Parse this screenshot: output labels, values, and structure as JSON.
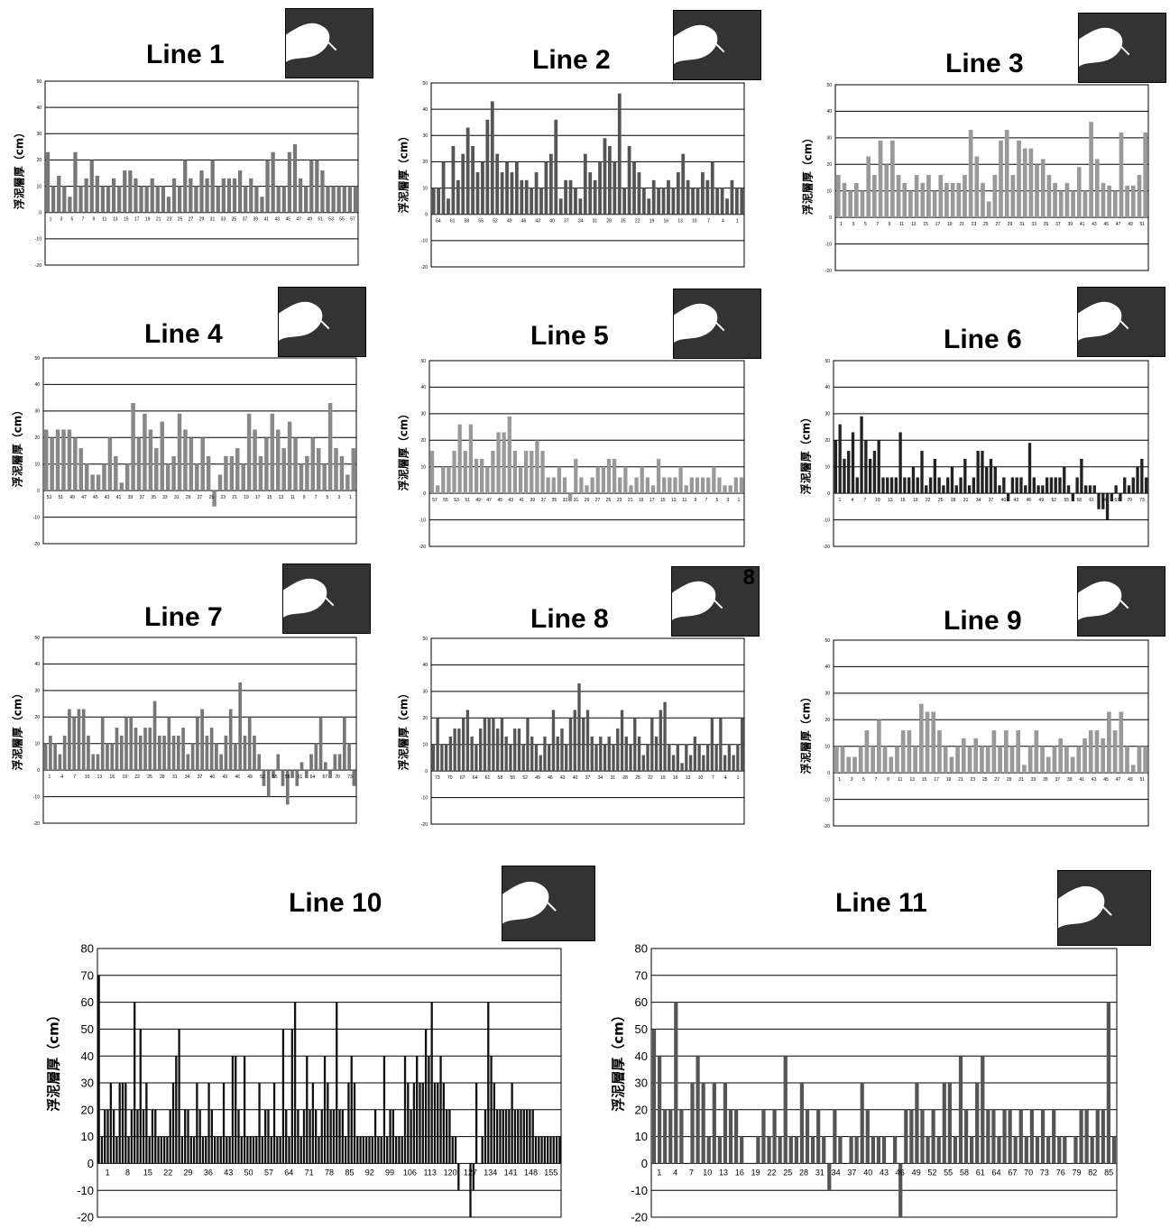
{
  "inset_labels": {
    "line8": "8"
  },
  "chart_data": [
    {
      "id": "line1",
      "type": "bar",
      "title": "Line 1",
      "ylabel": "浮泥層厚（cm）",
      "ylim": [
        -20,
        50
      ],
      "yticks": [
        -20,
        -10,
        0,
        10,
        20,
        30,
        40,
        50
      ],
      "grid": true,
      "legend": "none",
      "bar_color": "#777777",
      "x_tick_labels": [
        "1",
        "3",
        "5",
        "7",
        "9",
        "11",
        "13",
        "15",
        "17",
        "19",
        "21",
        "23",
        "25",
        "27",
        "29",
        "31",
        "33",
        "35",
        "37",
        "39",
        "41",
        "43",
        "45",
        "47",
        "49",
        "51",
        "53",
        "55",
        "57"
      ],
      "values": [
        23,
        10,
        14,
        10,
        6,
        23,
        10,
        13,
        20,
        14,
        10,
        10,
        13,
        10,
        16,
        16,
        13,
        10,
        10,
        13,
        10,
        10,
        6,
        13,
        10,
        20,
        13,
        10,
        16,
        13,
        20,
        10,
        13,
        13,
        13,
        16,
        10,
        13,
        10,
        6,
        20,
        23,
        10,
        10,
        23,
        26,
        13,
        10,
        20,
        20,
        16,
        10,
        10,
        10,
        10,
        10,
        10
      ]
    },
    {
      "id": "line2",
      "type": "bar",
      "title": "Line 2",
      "ylabel": "浮泥層厚（cm）",
      "ylim": [
        -20,
        50
      ],
      "yticks": [
        -20,
        -10,
        0,
        10,
        20,
        30,
        40,
        50
      ],
      "grid": true,
      "legend": "none",
      "bar_color": "#555555",
      "x_tick_labels": [
        "64",
        "61",
        "58",
        "55",
        "52",
        "49",
        "46",
        "43",
        "40",
        "37",
        "34",
        "31",
        "28",
        "25",
        "22",
        "19",
        "16",
        "13",
        "10",
        "7",
        "4",
        "1"
      ],
      "values": [
        10,
        10,
        20,
        6,
        26,
        13,
        23,
        33,
        26,
        16,
        20,
        36,
        43,
        23,
        16,
        20,
        16,
        20,
        13,
        13,
        10,
        16,
        10,
        20,
        23,
        36,
        6,
        13,
        13,
        10,
        6,
        23,
        16,
        13,
        20,
        29,
        26,
        20,
        46,
        10,
        26,
        20,
        16,
        10,
        6,
        13,
        10,
        10,
        13,
        10,
        16,
        23,
        13,
        10,
        10,
        16,
        13,
        20,
        10,
        10,
        6,
        13,
        10,
        10
      ]
    },
    {
      "id": "line3",
      "type": "bar",
      "title": "Line 3",
      "ylabel": "浮泥層厚（cm）",
      "ylim": [
        -20,
        50
      ],
      "yticks": [
        -20,
        -10,
        0,
        10,
        20,
        30,
        40,
        50
      ],
      "grid": true,
      "legend": "none",
      "bar_color": "#999999",
      "x_tick_labels": [
        "1",
        "3",
        "5",
        "7",
        "9",
        "11",
        "13",
        "15",
        "17",
        "19",
        "21",
        "23",
        "25",
        "27",
        "29",
        "31",
        "33",
        "35",
        "37",
        "39",
        "41",
        "43",
        "45",
        "47",
        "49",
        "51"
      ],
      "values": [
        16,
        13,
        10,
        13,
        10,
        23,
        16,
        29,
        20,
        29,
        16,
        13,
        10,
        16,
        13,
        16,
        10,
        16,
        13,
        13,
        13,
        16,
        33,
        23,
        13,
        6,
        16,
        29,
        33,
        16,
        29,
        26,
        26,
        20,
        22,
        16,
        13,
        10,
        13,
        10,
        19,
        10,
        36,
        22,
        13,
        12,
        10,
        32,
        12,
        12,
        16,
        32
      ]
    },
    {
      "id": "line4",
      "type": "bar",
      "title": "Line 4",
      "ylabel": "浮泥層厚（cm）",
      "ylim": [
        -20,
        50
      ],
      "yticks": [
        -20,
        -10,
        0,
        10,
        20,
        30,
        40,
        50
      ],
      "grid": true,
      "legend": "none",
      "bar_color": "#888888",
      "x_tick_labels": [
        "53",
        "51",
        "49",
        "47",
        "45",
        "43",
        "41",
        "39",
        "37",
        "35",
        "33",
        "31",
        "29",
        "27",
        "25",
        "23",
        "21",
        "19",
        "17",
        "15",
        "13",
        "11",
        "9",
        "7",
        "5",
        "3",
        "1"
      ],
      "values": [
        23,
        20,
        23,
        23,
        23,
        20,
        16,
        10,
        6,
        6,
        10,
        20,
        13,
        3,
        10,
        33,
        20,
        29,
        23,
        16,
        26,
        10,
        13,
        29,
        23,
        20,
        10,
        20,
        13,
        -6,
        6,
        13,
        13,
        16,
        10,
        29,
        23,
        13,
        20,
        29,
        23,
        16,
        26,
        20,
        10,
        13,
        20,
        16,
        10,
        33,
        16,
        13,
        6,
        16
      ]
    },
    {
      "id": "line5",
      "type": "bar",
      "title": "Line 5",
      "ylabel": "浮泥層厚（cm）",
      "ylim": [
        -20,
        50
      ],
      "yticks": [
        -20,
        -10,
        0,
        10,
        20,
        30,
        40,
        50
      ],
      "grid": true,
      "legend": "none",
      "bar_color": "#999999",
      "x_tick_labels": [
        "57",
        "55",
        "53",
        "51",
        "49",
        "47",
        "45",
        "43",
        "41",
        "39",
        "37",
        "35",
        "33",
        "31",
        "29",
        "27",
        "25",
        "23",
        "21",
        "19",
        "17",
        "15",
        "13",
        "11",
        "9",
        "7",
        "5",
        "3",
        "1"
      ],
      "values": [
        16,
        3,
        10,
        10,
        16,
        26,
        16,
        26,
        13,
        13,
        10,
        16,
        23,
        23,
        29,
        16,
        10,
        16,
        16,
        20,
        16,
        6,
        6,
        10,
        6,
        -3,
        13,
        6,
        3,
        6,
        10,
        10,
        13,
        13,
        6,
        10,
        3,
        6,
        10,
        6,
        3,
        13,
        6,
        6,
        6,
        10,
        3,
        6,
        6,
        6,
        6,
        10,
        6,
        3,
        3,
        6,
        6
      ]
    },
    {
      "id": "line6",
      "type": "bar",
      "title": "Line 6",
      "ylabel": "浮泥層厚（cm）",
      "ylim": [
        -20,
        50
      ],
      "yticks": [
        -20,
        -10,
        0,
        10,
        20,
        30,
        40,
        50
      ],
      "grid": true,
      "legend": "none",
      "bar_color": "#222222",
      "x_tick_labels": [
        "1",
        "4",
        "7",
        "10",
        "13",
        "16",
        "19",
        "22",
        "25",
        "28",
        "31",
        "34",
        "37",
        "40",
        "43",
        "46",
        "49",
        "52",
        "55",
        "58",
        "61",
        "64",
        "67",
        "70",
        "73"
      ],
      "values": [
        20,
        26,
        13,
        16,
        23,
        6,
        29,
        20,
        13,
        16,
        20,
        6,
        6,
        6,
        6,
        23,
        6,
        6,
        10,
        6,
        16,
        3,
        6,
        13,
        6,
        3,
        6,
        10,
        3,
        6,
        13,
        3,
        6,
        16,
        16,
        10,
        13,
        10,
        3,
        6,
        -3,
        6,
        6,
        6,
        3,
        19,
        6,
        3,
        3,
        6,
        6,
        6,
        6,
        10,
        3,
        -3,
        6,
        13,
        3,
        3,
        3,
        -6,
        -6,
        -10,
        -3,
        3,
        -3,
        6,
        3,
        6,
        10,
        13,
        6
      ]
    },
    {
      "id": "line7",
      "type": "bar",
      "title": "Line 7",
      "ylabel": "浮泥層厚（cm）",
      "ylim": [
        -20,
        50
      ],
      "yticks": [
        -20,
        -10,
        0,
        10,
        20,
        30,
        40,
        50
      ],
      "grid": true,
      "legend": "none",
      "bar_color": "#777777",
      "x_tick_labels": [
        "1",
        "4",
        "7",
        "10",
        "13",
        "16",
        "19",
        "22",
        "25",
        "28",
        "31",
        "34",
        "37",
        "40",
        "43",
        "46",
        "49",
        "52",
        "55",
        "58",
        "61",
        "64",
        "67",
        "70",
        "73"
      ],
      "values": [
        10,
        13,
        10,
        6,
        13,
        23,
        20,
        23,
        23,
        13,
        6,
        6,
        20,
        10,
        10,
        16,
        13,
        20,
        20,
        16,
        13,
        16,
        16,
        26,
        13,
        13,
        20,
        13,
        13,
        16,
        6,
        10,
        20,
        23,
        13,
        16,
        10,
        6,
        13,
        23,
        10,
        33,
        13,
        20,
        13,
        6,
        -6,
        -10,
        -3,
        6,
        -6,
        -13,
        -3,
        -6,
        3,
        -3,
        6,
        10,
        20,
        3,
        -3,
        6,
        6,
        20,
        10,
        -6
      ]
    },
    {
      "id": "line8",
      "type": "bar",
      "title": "Line 8",
      "ylabel": "浮泥層厚（cm）",
      "ylim": [
        -20,
        50
      ],
      "yticks": [
        -20,
        -10,
        0,
        10,
        20,
        30,
        40,
        50
      ],
      "grid": true,
      "legend": "none",
      "bar_color": "#555555",
      "x_tick_labels": [
        "73",
        "70",
        "67",
        "64",
        "61",
        "58",
        "55",
        "52",
        "49",
        "46",
        "43",
        "40",
        "37",
        "34",
        "31",
        "28",
        "25",
        "22",
        "19",
        "16",
        "13",
        "10",
        "7",
        "4",
        "1"
      ],
      "values": [
        10,
        20,
        10,
        10,
        13,
        16,
        16,
        20,
        23,
        13,
        10,
        16,
        20,
        20,
        20,
        16,
        20,
        13,
        10,
        16,
        16,
        10,
        20,
        13,
        10,
        6,
        13,
        10,
        23,
        13,
        16,
        10,
        20,
        23,
        33,
        20,
        23,
        13,
        10,
        13,
        10,
        13,
        10,
        16,
        23,
        13,
        10,
        20,
        13,
        6,
        10,
        20,
        13,
        23,
        26,
        10,
        6,
        10,
        3,
        10,
        6,
        13,
        10,
        6,
        10,
        20,
        10,
        20,
        6,
        10,
        6,
        10,
        20
      ]
    },
    {
      "id": "line9",
      "type": "bar",
      "title": "Line 9",
      "ylabel": "浮泥層厚（cm）",
      "ylim": [
        -20,
        50
      ],
      "yticks": [
        -20,
        -10,
        0,
        10,
        20,
        30,
        40,
        50
      ],
      "grid": true,
      "legend": "none",
      "bar_color": "#999999",
      "x_tick_labels": [
        "1",
        "3",
        "5",
        "7",
        "9",
        "11",
        "13",
        "15",
        "17",
        "19",
        "21",
        "23",
        "25",
        "27",
        "29",
        "31",
        "33",
        "35",
        "37",
        "39",
        "41",
        "43",
        "45",
        "47",
        "49",
        "51"
      ],
      "values": [
        10,
        10,
        6,
        6,
        10,
        16,
        10,
        20,
        10,
        6,
        10,
        16,
        16,
        10,
        26,
        23,
        23,
        16,
        10,
        6,
        10,
        13,
        10,
        13,
        10,
        10,
        16,
        10,
        16,
        10,
        16,
        3,
        10,
        16,
        10,
        6,
        10,
        13,
        10,
        6,
        10,
        13,
        16,
        16,
        13,
        23,
        16,
        23,
        10,
        3,
        10,
        10
      ]
    },
    {
      "id": "line10",
      "type": "bar",
      "title": "Line 10",
      "ylabel": "浮泥層厚（cm）",
      "ylim": [
        -20,
        80
      ],
      "yticks": [
        -20,
        -10,
        0,
        10,
        20,
        30,
        40,
        50,
        60,
        70,
        80
      ],
      "grid": true,
      "legend": "none",
      "bar_color": "#111111",
      "x_tick_labels": [
        "1",
        "8",
        "15",
        "22",
        "29",
        "36",
        "43",
        "50",
        "57",
        "64",
        "71",
        "78",
        "85",
        "92",
        "99",
        "106",
        "113",
        "120",
        "127",
        "134",
        "141",
        "148",
        "155"
      ],
      "values": [
        70,
        10,
        20,
        20,
        30,
        20,
        10,
        30,
        30,
        30,
        10,
        20,
        60,
        20,
        50,
        20,
        30,
        10,
        20,
        20,
        10,
        10,
        10,
        10,
        20,
        30,
        40,
        50,
        10,
        20,
        20,
        10,
        10,
        30,
        20,
        10,
        10,
        30,
        20,
        10,
        10,
        10,
        30,
        10,
        10,
        40,
        40,
        20,
        10,
        40,
        10,
        10,
        10,
        10,
        30,
        10,
        20,
        20,
        10,
        30,
        10,
        10,
        50,
        20,
        10,
        50,
        60,
        20,
        10,
        20,
        40,
        20,
        30,
        20,
        10,
        20,
        40,
        30,
        20,
        20,
        60,
        20,
        20,
        10,
        30,
        40,
        30,
        10,
        10,
        10,
        10,
        10,
        10,
        20,
        10,
        10,
        40,
        10,
        20,
        20,
        10,
        10,
        10,
        40,
        30,
        20,
        30,
        40,
        30,
        30,
        50,
        40,
        60,
        30,
        30,
        40,
        30,
        20,
        20,
        10,
        10,
        -10,
        0,
        0,
        0,
        -20,
        -10,
        30,
        0,
        10,
        20,
        60,
        40,
        30,
        20,
        20,
        20,
        20,
        20,
        30,
        20,
        20,
        20,
        20,
        20,
        20,
        20,
        10,
        10,
        10,
        10,
        10,
        10,
        10,
        10,
        10
      ]
    },
    {
      "id": "line11",
      "type": "bar",
      "title": "Line 11",
      "ylabel": "浮泥層厚（cm）",
      "ylim": [
        -20,
        80
      ],
      "yticks": [
        -20,
        -10,
        0,
        10,
        20,
        30,
        40,
        50,
        60,
        70,
        80
      ],
      "grid": true,
      "legend": "none",
      "bar_color": "#555555",
      "x_tick_labels": [
        "1",
        "4",
        "7",
        "10",
        "13",
        "16",
        "19",
        "22",
        "25",
        "28",
        "31",
        "34",
        "37",
        "40",
        "43",
        "46",
        "49",
        "52",
        "55",
        "58",
        "61",
        "64",
        "67",
        "70",
        "73",
        "76",
        "79",
        "82",
        "85"
      ],
      "values": [
        50,
        40,
        20,
        20,
        60,
        20,
        0,
        30,
        40,
        30,
        10,
        30,
        10,
        30,
        20,
        20,
        10,
        0,
        0,
        10,
        20,
        10,
        20,
        10,
        40,
        10,
        10,
        30,
        20,
        10,
        20,
        10,
        -10,
        20,
        10,
        0,
        10,
        10,
        30,
        20,
        10,
        10,
        10,
        0,
        10,
        -20,
        20,
        20,
        30,
        20,
        10,
        20,
        10,
        30,
        30,
        10,
        40,
        20,
        10,
        30,
        40,
        20,
        20,
        10,
        20,
        20,
        10,
        20,
        10,
        20,
        10,
        20,
        10,
        20,
        10,
        10,
        0,
        10,
        20,
        20,
        10,
        20,
        20,
        60,
        10
      ]
    }
  ]
}
